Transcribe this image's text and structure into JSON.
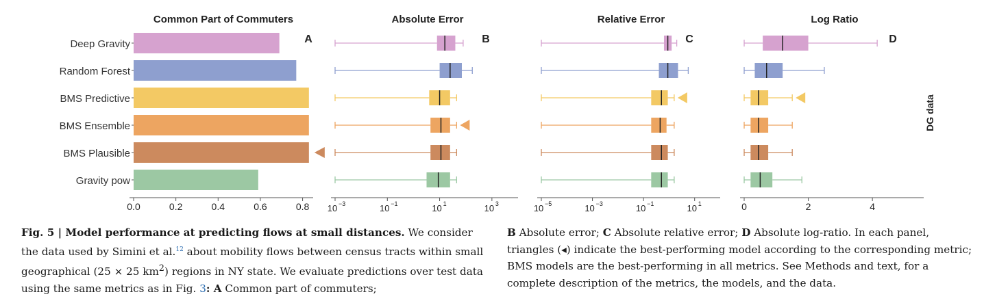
{
  "panels": [
    {
      "letter": "A",
      "title": "Common Part of Commuters",
      "type": "bar",
      "ticks": [
        {
          "v": 0.0,
          "l": "0.0"
        },
        {
          "v": 0.2,
          "l": "0.2"
        },
        {
          "v": 0.4,
          "l": "0.4"
        },
        {
          "v": 0.6,
          "l": "0.6"
        },
        {
          "v": 0.8,
          "l": "0.8"
        }
      ]
    },
    {
      "letter": "B",
      "title": "Absolute Error",
      "type": "box",
      "scale": "log",
      "ticks": [
        {
          "v": -3,
          "b": "10",
          "e": "−3"
        },
        {
          "v": -1,
          "b": "10",
          "e": "−1"
        },
        {
          "v": 1,
          "b": "10",
          "e": "1"
        },
        {
          "v": 3,
          "b": "10",
          "e": "3"
        }
      ]
    },
    {
      "letter": "C",
      "title": "Relative Error",
      "type": "box",
      "scale": "log",
      "ticks": [
        {
          "v": -5,
          "b": "10",
          "e": "−5"
        },
        {
          "v": -3,
          "b": "10",
          "e": "−3"
        },
        {
          "v": -1,
          "b": "10",
          "e": "−1"
        },
        {
          "v": 1,
          "b": "10",
          "e": "1"
        }
      ]
    },
    {
      "letter": "D",
      "title": "Log Ratio",
      "type": "box",
      "scale": "linear",
      "ticks": [
        {
          "v": 0,
          "l": "0"
        },
        {
          "v": 2,
          "l": "2"
        },
        {
          "v": 4,
          "l": "4"
        }
      ]
    }
  ],
  "side_label": "DG data",
  "chart_data": {
    "type": "bar",
    "categories": [
      "Deep Gravity",
      "Random Forest",
      "BMS Predictive",
      "BMS Ensemble",
      "BMS Plausible",
      "Gravity pow"
    ],
    "colors": [
      "#d6a2cf",
      "#8e9fcf",
      "#f3c964",
      "#eda561",
      "#cc8a5e",
      "#9cc8a3"
    ],
    "common_part_of_commuters": {
      "values": [
        0.69,
        0.77,
        0.83,
        0.83,
        0.83,
        0.59
      ],
      "xlim": [
        0,
        0.85
      ],
      "best": 4
    },
    "absolute_error_log10": {
      "note": "box stats as log10 values",
      "boxes": [
        {
          "wlo": -3,
          "q1": 0.9,
          "med": 1.2,
          "q3": 1.6,
          "whi": 1.9
        },
        {
          "wlo": -3,
          "q1": 1.0,
          "med": 1.4,
          "q3": 1.85,
          "whi": 2.25
        },
        {
          "wlo": -3,
          "q1": 0.6,
          "med": 1.0,
          "q3": 1.4,
          "whi": 1.65
        },
        {
          "wlo": -3,
          "q1": 0.65,
          "med": 1.05,
          "q3": 1.4,
          "whi": 1.65
        },
        {
          "wlo": -3,
          "q1": 0.65,
          "med": 1.05,
          "q3": 1.4,
          "whi": 1.65
        },
        {
          "wlo": -3,
          "q1": 0.5,
          "med": 0.95,
          "q3": 1.4,
          "whi": 1.65
        }
      ],
      "best": 3,
      "xlim": [
        -3,
        4
      ]
    },
    "relative_error_log10": {
      "boxes": [
        {
          "wlo": -5,
          "q1": -0.2,
          "med": -0.05,
          "q3": 0.1,
          "whi": 0.3
        },
        {
          "wlo": -5,
          "q1": -0.4,
          "med": -0.05,
          "q3": 0.35,
          "whi": 0.75
        },
        {
          "wlo": -5,
          "q1": -0.7,
          "med": -0.3,
          "q3": -0.05,
          "whi": 0.2
        },
        {
          "wlo": -5,
          "q1": -0.7,
          "med": -0.35,
          "q3": -0.1,
          "whi": 0.2
        },
        {
          "wlo": -5,
          "q1": -0.7,
          "med": -0.3,
          "q3": -0.05,
          "whi": 0.2
        },
        {
          "wlo": -5,
          "q1": -0.7,
          "med": -0.3,
          "q3": -0.05,
          "whi": 0.2
        }
      ],
      "best": 2,
      "xlim": [
        -5,
        2
      ]
    },
    "log_ratio": {
      "boxes": [
        {
          "wlo": 0,
          "q1": 0.58,
          "med": 1.2,
          "q3": 2.0,
          "whi": 4.15
        },
        {
          "wlo": 0,
          "q1": 0.33,
          "med": 0.7,
          "q3": 1.2,
          "whi": 2.5
        },
        {
          "wlo": 0,
          "q1": 0.2,
          "med": 0.45,
          "q3": 0.75,
          "whi": 1.5
        },
        {
          "wlo": 0,
          "q1": 0.2,
          "med": 0.45,
          "q3": 0.75,
          "whi": 1.5
        },
        {
          "wlo": 0,
          "q1": 0.2,
          "med": 0.45,
          "q3": 0.75,
          "whi": 1.5
        },
        {
          "wlo": 0,
          "q1": 0.2,
          "med": 0.5,
          "q3": 0.88,
          "whi": 1.8
        }
      ],
      "best": 2,
      "xlim": [
        0,
        5.6
      ]
    }
  },
  "caption": {
    "left_bold": "Fig. 5 | Model performance at predicting flows at small distances.",
    "left_text_1": " We consider the data used by Simini et al.",
    "left_ref": "12",
    "left_text_2": " about mobility flows between census tracts within small geographical (25 × 25 km",
    "left_text_3": ") regions in NY state. We evaluate predictions over test data using the same metrics as in Fig. ",
    "left_fig_ref": "3",
    "left_text_4": ": ",
    "left_a_letter": "A",
    "left_text_5": " Common part of commuters;",
    "right_b": "B",
    "right_b_text": " Absolute error; ",
    "right_c": "C",
    "right_c_text": " Absolute relative error; ",
    "right_d": "D",
    "right_d_text": " Absolute log-ratio. In each panel, triangles (◂) indicate the best-performing model according to the corresponding metric; BMS models are the best-performing in all metrics. See Methods and text, for a complete description of the metrics, the models, and the data."
  }
}
